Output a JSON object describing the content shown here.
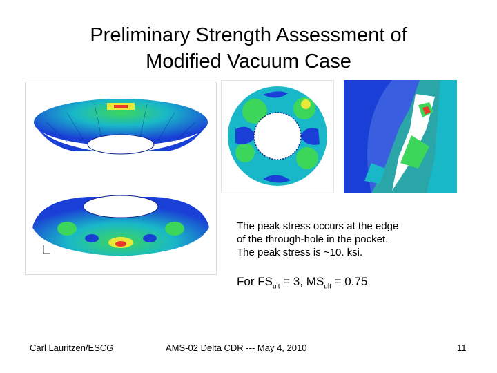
{
  "slide": {
    "title_line1": "Preliminary Strength Assessment of",
    "title_line2": "Modified Vacuum Case",
    "body_line1": "The peak stress occurs at the edge",
    "body_line2": "of the through-hole in the pocket.",
    "body_line3": "The peak stress is ~10. ksi.",
    "fs": {
      "prefix": "For FS",
      "sub1": "ult",
      "middle": " = 3, MS",
      "sub2": "ult",
      "suffix": " =  0.75"
    },
    "footer_left": "Carl Lauritzen/ESCG",
    "footer_center": "AMS-02 Delta CDR --- May 4, 2010",
    "page_number": "11"
  },
  "colors": {
    "fea_blue": "#1a3fd6",
    "fea_cyan": "#19b8c8",
    "fea_green": "#3cd65a",
    "fea_yellow": "#e8e83a",
    "fea_red": "#e83a2a"
  }
}
